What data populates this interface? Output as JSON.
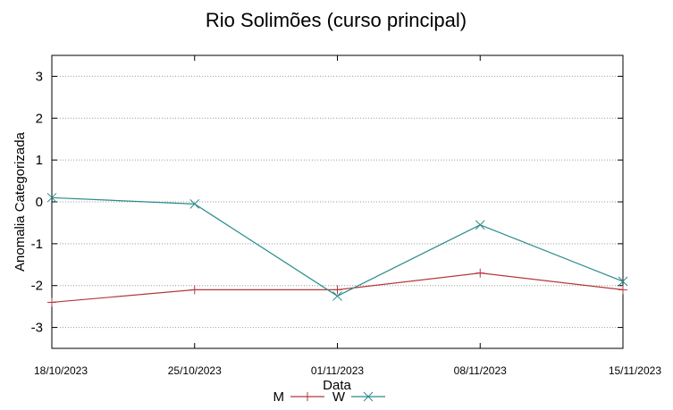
{
  "chart_data": {
    "type": "line",
    "title": "Rio Solimões (curso principal)",
    "xlabel": "Data",
    "ylabel": "Anomalia Categorizada",
    "categories": [
      "18/10/2023",
      "25/10/2023",
      "01/11/2023",
      "08/11/2023",
      "15/11/2023"
    ],
    "ylim": [
      -3.5,
      3.5
    ],
    "yticks": [
      3,
      2,
      1,
      0,
      -1,
      -2,
      -3
    ],
    "grid": true,
    "legend": "bottom",
    "series": [
      {
        "name": "M",
        "color": "#b5383b",
        "marker": "plus",
        "values": [
          -2.4,
          -2.1,
          -2.1,
          -1.7,
          -2.1
        ]
      },
      {
        "name": "W",
        "color": "#2a8a8a",
        "marker": "cross",
        "values": [
          0.1,
          -0.05,
          -2.25,
          -0.55,
          -1.9
        ]
      }
    ]
  }
}
